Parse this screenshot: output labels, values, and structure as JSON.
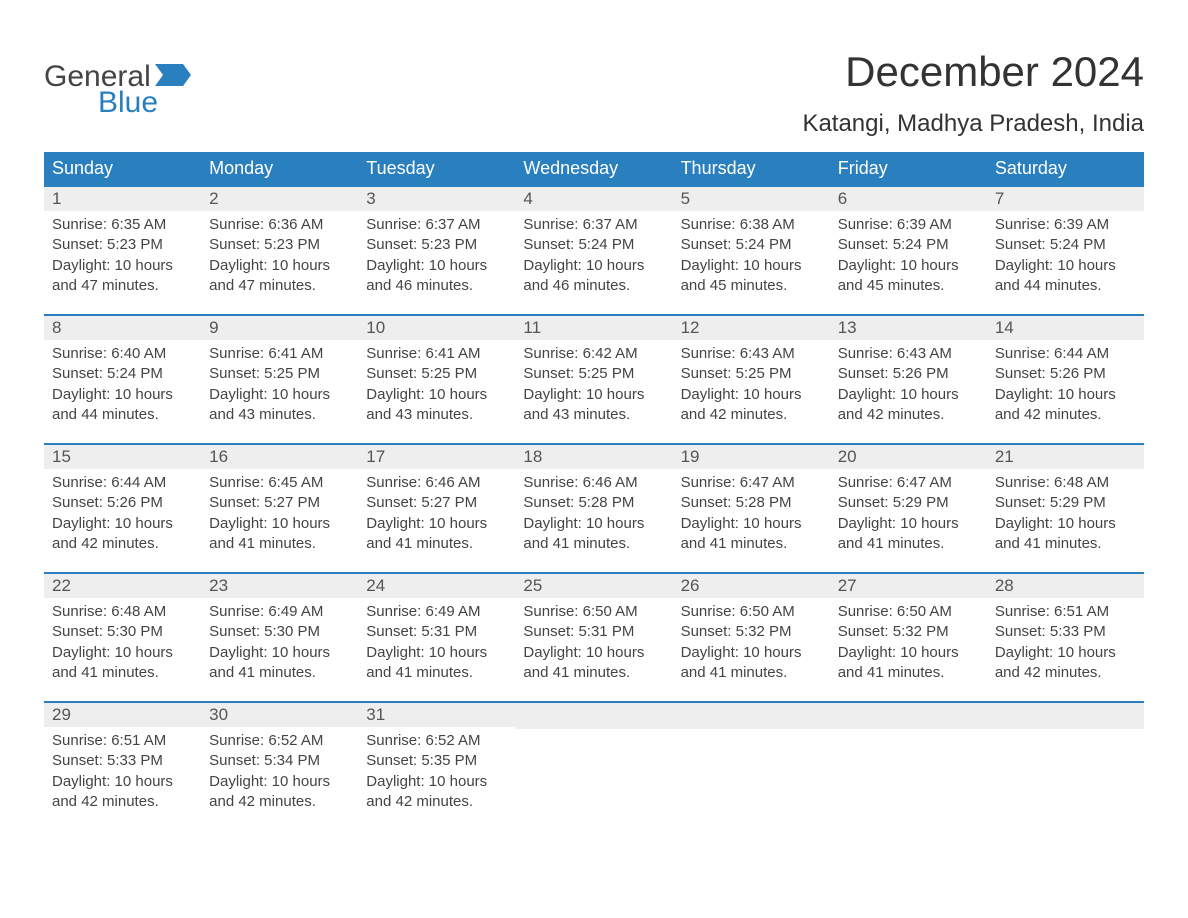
{
  "colors": {
    "header_bg": "#2a7fbf",
    "header_text": "#ffffff",
    "daynum_bg": "#eeeeee",
    "body_text": "#444444",
    "title_text": "#333333",
    "logo_gray": "#444444",
    "logo_blue": "#2a7fbf",
    "page_bg": "#ffffff",
    "week_border": "#2a7fbf"
  },
  "typography": {
    "month_title_fontsize": 42,
    "location_fontsize": 24,
    "weekday_fontsize": 18,
    "daynum_fontsize": 17,
    "body_fontsize": 15,
    "logo_fontsize": 30
  },
  "labels": {
    "sunrise": "Sunrise:",
    "sunset": "Sunset:",
    "daylight": "Daylight:"
  },
  "logo": {
    "top": "General",
    "bottom": "Blue"
  },
  "title": "December 2024",
  "location": "Katangi, Madhya Pradesh, India",
  "weekdays": [
    "Sunday",
    "Monday",
    "Tuesday",
    "Wednesday",
    "Thursday",
    "Friday",
    "Saturday"
  ],
  "layout": {
    "columns": 7,
    "rows": 5,
    "start_weekday_index": 0,
    "days_in_month": 31
  },
  "days": [
    {
      "n": 1,
      "sunrise": "6:35 AM",
      "sunset": "5:23 PM",
      "daylight": "10 hours and 47 minutes."
    },
    {
      "n": 2,
      "sunrise": "6:36 AM",
      "sunset": "5:23 PM",
      "daylight": "10 hours and 47 minutes."
    },
    {
      "n": 3,
      "sunrise": "6:37 AM",
      "sunset": "5:23 PM",
      "daylight": "10 hours and 46 minutes."
    },
    {
      "n": 4,
      "sunrise": "6:37 AM",
      "sunset": "5:24 PM",
      "daylight": "10 hours and 46 minutes."
    },
    {
      "n": 5,
      "sunrise": "6:38 AM",
      "sunset": "5:24 PM",
      "daylight": "10 hours and 45 minutes."
    },
    {
      "n": 6,
      "sunrise": "6:39 AM",
      "sunset": "5:24 PM",
      "daylight": "10 hours and 45 minutes."
    },
    {
      "n": 7,
      "sunrise": "6:39 AM",
      "sunset": "5:24 PM",
      "daylight": "10 hours and 44 minutes."
    },
    {
      "n": 8,
      "sunrise": "6:40 AM",
      "sunset": "5:24 PM",
      "daylight": "10 hours and 44 minutes."
    },
    {
      "n": 9,
      "sunrise": "6:41 AM",
      "sunset": "5:25 PM",
      "daylight": "10 hours and 43 minutes."
    },
    {
      "n": 10,
      "sunrise": "6:41 AM",
      "sunset": "5:25 PM",
      "daylight": "10 hours and 43 minutes."
    },
    {
      "n": 11,
      "sunrise": "6:42 AM",
      "sunset": "5:25 PM",
      "daylight": "10 hours and 43 minutes."
    },
    {
      "n": 12,
      "sunrise": "6:43 AM",
      "sunset": "5:25 PM",
      "daylight": "10 hours and 42 minutes."
    },
    {
      "n": 13,
      "sunrise": "6:43 AM",
      "sunset": "5:26 PM",
      "daylight": "10 hours and 42 minutes."
    },
    {
      "n": 14,
      "sunrise": "6:44 AM",
      "sunset": "5:26 PM",
      "daylight": "10 hours and 42 minutes."
    },
    {
      "n": 15,
      "sunrise": "6:44 AM",
      "sunset": "5:26 PM",
      "daylight": "10 hours and 42 minutes."
    },
    {
      "n": 16,
      "sunrise": "6:45 AM",
      "sunset": "5:27 PM",
      "daylight": "10 hours and 41 minutes."
    },
    {
      "n": 17,
      "sunrise": "6:46 AM",
      "sunset": "5:27 PM",
      "daylight": "10 hours and 41 minutes."
    },
    {
      "n": 18,
      "sunrise": "6:46 AM",
      "sunset": "5:28 PM",
      "daylight": "10 hours and 41 minutes."
    },
    {
      "n": 19,
      "sunrise": "6:47 AM",
      "sunset": "5:28 PM",
      "daylight": "10 hours and 41 minutes."
    },
    {
      "n": 20,
      "sunrise": "6:47 AM",
      "sunset": "5:29 PM",
      "daylight": "10 hours and 41 minutes."
    },
    {
      "n": 21,
      "sunrise": "6:48 AM",
      "sunset": "5:29 PM",
      "daylight": "10 hours and 41 minutes."
    },
    {
      "n": 22,
      "sunrise": "6:48 AM",
      "sunset": "5:30 PM",
      "daylight": "10 hours and 41 minutes."
    },
    {
      "n": 23,
      "sunrise": "6:49 AM",
      "sunset": "5:30 PM",
      "daylight": "10 hours and 41 minutes."
    },
    {
      "n": 24,
      "sunrise": "6:49 AM",
      "sunset": "5:31 PM",
      "daylight": "10 hours and 41 minutes."
    },
    {
      "n": 25,
      "sunrise": "6:50 AM",
      "sunset": "5:31 PM",
      "daylight": "10 hours and 41 minutes."
    },
    {
      "n": 26,
      "sunrise": "6:50 AM",
      "sunset": "5:32 PM",
      "daylight": "10 hours and 41 minutes."
    },
    {
      "n": 27,
      "sunrise": "6:50 AM",
      "sunset": "5:32 PM",
      "daylight": "10 hours and 41 minutes."
    },
    {
      "n": 28,
      "sunrise": "6:51 AM",
      "sunset": "5:33 PM",
      "daylight": "10 hours and 42 minutes."
    },
    {
      "n": 29,
      "sunrise": "6:51 AM",
      "sunset": "5:33 PM",
      "daylight": "10 hours and 42 minutes."
    },
    {
      "n": 30,
      "sunrise": "6:52 AM",
      "sunset": "5:34 PM",
      "daylight": "10 hours and 42 minutes."
    },
    {
      "n": 31,
      "sunrise": "6:52 AM",
      "sunset": "5:35 PM",
      "daylight": "10 hours and 42 minutes."
    }
  ]
}
